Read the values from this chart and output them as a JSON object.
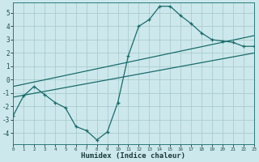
{
  "xlabel": "Humidex (Indice chaleur)",
  "bg_color": "#cce8ec",
  "grid_color": "#aacccc",
  "line_color": "#1a6b6b",
  "xlim": [
    0,
    23
  ],
  "ylim": [
    -4.8,
    5.8
  ],
  "yticks": [
    -4,
    -3,
    -2,
    -1,
    0,
    1,
    2,
    3,
    4,
    5
  ],
  "xticks": [
    0,
    1,
    2,
    3,
    4,
    5,
    6,
    7,
    8,
    9,
    10,
    11,
    12,
    13,
    14,
    15,
    16,
    17,
    18,
    19,
    20,
    21,
    22,
    23
  ],
  "curve_x": [
    0,
    1,
    2,
    3,
    4,
    5,
    6,
    7,
    8,
    9,
    10,
    11,
    12,
    13,
    14,
    15,
    16,
    17,
    18,
    19,
    20,
    21,
    22,
    23
  ],
  "curve_y": [
    -2.7,
    -1.2,
    -0.5,
    -1.1,
    -1.7,
    -2.1,
    -3.5,
    -3.8,
    -4.5,
    -3.9,
    -1.7,
    1.8,
    4.0,
    4.5,
    5.5,
    5.5,
    4.8,
    4.2,
    3.5,
    3.0,
    2.9,
    2.8,
    2.5,
    2.5
  ],
  "trend1_x": [
    0,
    23
  ],
  "trend1_y": [
    -0.5,
    3.3
  ],
  "trend2_x": [
    0,
    23
  ],
  "trend2_y": [
    -1.3,
    2.0
  ]
}
